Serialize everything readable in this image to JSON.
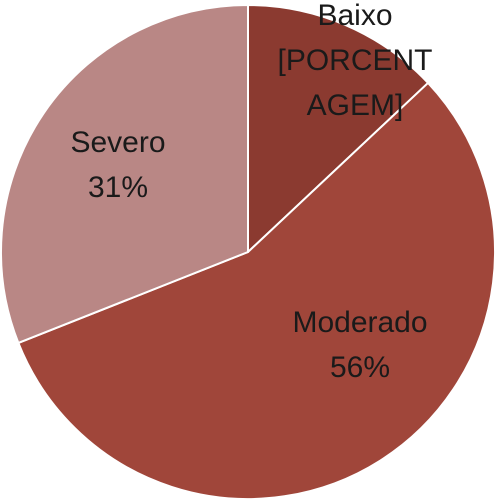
{
  "chart_data": {
    "type": "pie",
    "categories": [
      "Baixo",
      "Moderado",
      "Severo"
    ],
    "values": [
      13,
      56,
      31
    ],
    "value_labels": [
      "[PORCENTAGEM]",
      "56%",
      "31%"
    ],
    "colors": [
      "#8b3a30",
      "#a0463a",
      "#b98785"
    ]
  }
}
